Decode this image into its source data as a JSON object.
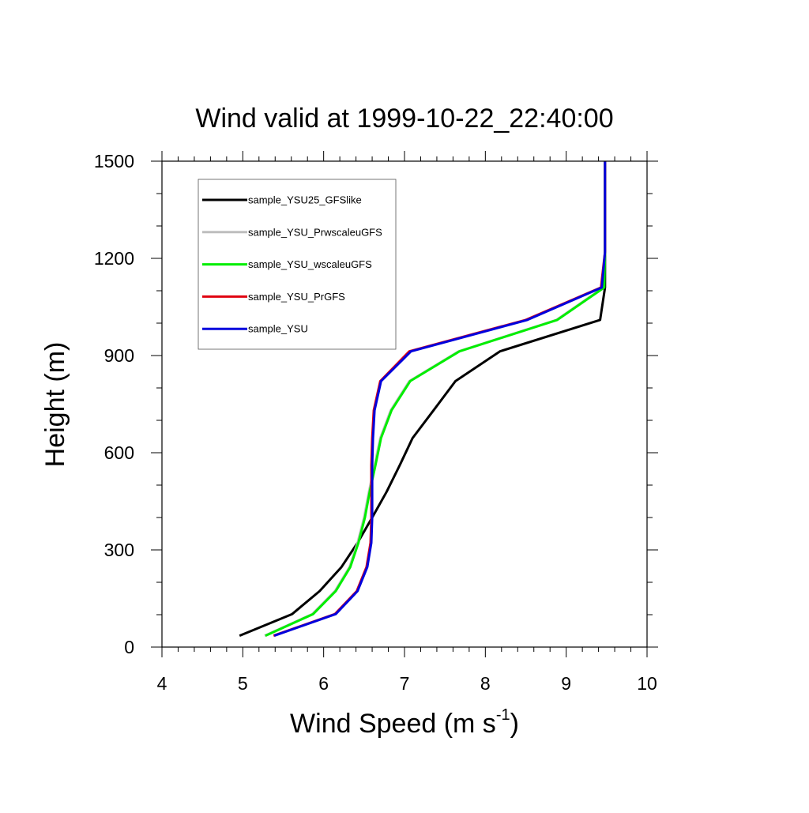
{
  "chart_data": {
    "type": "line",
    "title": "Wind valid at 1999-10-22_22:40:00",
    "xlabel": "Wind Speed (m s",
    "xlabel_sup": "-1",
    "xlabel_end": ")",
    "ylabel": "Height (m)",
    "xlim": [
      4,
      10
    ],
    "ylim": [
      0,
      1500
    ],
    "xticks": [
      4,
      5,
      6,
      7,
      8,
      9,
      10
    ],
    "yticks": [
      0,
      300,
      600,
      900,
      1200,
      1500
    ],
    "xtick_labels": [
      "4",
      "5",
      "6",
      "7",
      "8",
      "9",
      "10"
    ],
    "ytick_labels": [
      "0",
      "300",
      "600",
      "900",
      "1200",
      "1500"
    ],
    "grid": false,
    "legend_position": "top-left",
    "series": [
      {
        "name": "sample_YSU25_GFSlike",
        "color": "#000000",
        "points": [
          [
            4.96,
            35
          ],
          [
            5.61,
            102
          ],
          [
            5.95,
            173
          ],
          [
            6.22,
            247
          ],
          [
            6.42,
            322
          ],
          [
            6.6,
            400
          ],
          [
            6.78,
            480
          ],
          [
            6.94,
            561
          ],
          [
            7.1,
            645
          ],
          [
            7.36,
            731
          ],
          [
            7.63,
            821
          ],
          [
            8.18,
            913
          ],
          [
            9.42,
            1010
          ],
          [
            9.48,
            1110
          ],
          [
            9.48,
            1220
          ],
          [
            9.48,
            1500
          ]
        ]
      },
      {
        "name": "sample_YSU_PrwscaleuGFS",
        "color": "#bebebe",
        "points": [
          [
            5.27,
            35
          ],
          [
            5.86,
            102
          ],
          [
            6.14,
            173
          ],
          [
            6.32,
            247
          ],
          [
            6.42,
            322
          ],
          [
            6.5,
            400
          ],
          [
            6.56,
            480
          ],
          [
            6.63,
            561
          ],
          [
            6.7,
            645
          ],
          [
            6.83,
            731
          ],
          [
            7.06,
            821
          ],
          [
            7.67,
            913
          ],
          [
            8.88,
            1010
          ],
          [
            9.46,
            1110
          ],
          [
            9.48,
            1220
          ],
          [
            9.48,
            1500
          ]
        ]
      },
      {
        "name": "sample_YSU_wscaleuGFS",
        "color": "#00ee00",
        "points": [
          [
            5.28,
            35
          ],
          [
            5.87,
            102
          ],
          [
            6.15,
            173
          ],
          [
            6.33,
            247
          ],
          [
            6.43,
            322
          ],
          [
            6.51,
            400
          ],
          [
            6.57,
            480
          ],
          [
            6.64,
            561
          ],
          [
            6.71,
            645
          ],
          [
            6.84,
            731
          ],
          [
            7.07,
            821
          ],
          [
            7.68,
            913
          ],
          [
            8.89,
            1010
          ],
          [
            9.47,
            1110
          ],
          [
            9.48,
            1220
          ],
          [
            9.48,
            1500
          ]
        ]
      },
      {
        "name": "sample_YSU_PrGFS",
        "color": "#e00010",
        "points": [
          [
            5.38,
            35
          ],
          [
            6.14,
            102
          ],
          [
            6.41,
            173
          ],
          [
            6.53,
            247
          ],
          [
            6.58,
            322
          ],
          [
            6.59,
            400
          ],
          [
            6.59,
            480
          ],
          [
            6.59,
            561
          ],
          [
            6.6,
            645
          ],
          [
            6.62,
            731
          ],
          [
            6.7,
            821
          ],
          [
            7.06,
            913
          ],
          [
            8.5,
            1010
          ],
          [
            9.43,
            1110
          ],
          [
            9.48,
            1220
          ],
          [
            9.48,
            1500
          ]
        ]
      },
      {
        "name": "sample_YSU",
        "color": "#0000dd",
        "points": [
          [
            5.39,
            35
          ],
          [
            6.15,
            102
          ],
          [
            6.42,
            173
          ],
          [
            6.54,
            247
          ],
          [
            6.59,
            322
          ],
          [
            6.6,
            400
          ],
          [
            6.6,
            480
          ],
          [
            6.6,
            561
          ],
          [
            6.61,
            645
          ],
          [
            6.63,
            731
          ],
          [
            6.71,
            821
          ],
          [
            7.08,
            913
          ],
          [
            8.52,
            1010
          ],
          [
            9.44,
            1110
          ],
          [
            9.48,
            1220
          ],
          [
            9.48,
            1500
          ]
        ]
      }
    ]
  }
}
